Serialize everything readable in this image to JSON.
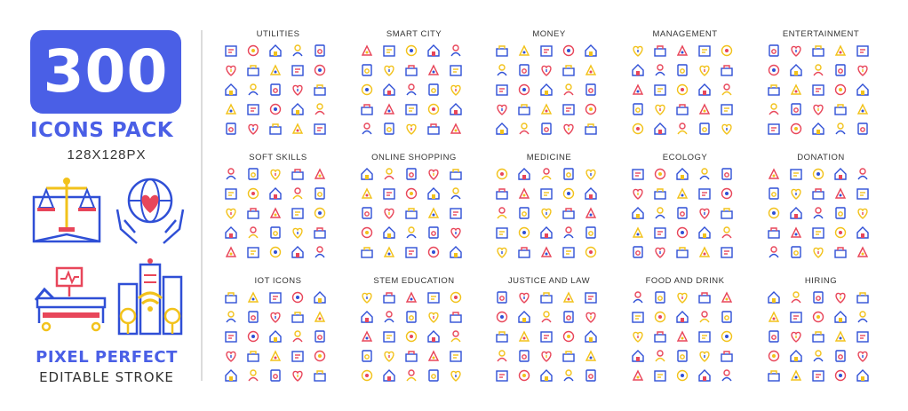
{
  "header": {
    "count": "300",
    "title": "ICONS PACK",
    "size": "128X128PX"
  },
  "footer": {
    "line1": "PIXEL PERFECT",
    "line2": "EDITABLE STROKE"
  },
  "colors": {
    "brand": "#4a5fe6",
    "icon_blue": "#2f4fd6",
    "icon_red": "#e8465a",
    "icon_yellow": "#f2c21b",
    "text": "#333333"
  },
  "categories": [
    {
      "title": "UTILITIES"
    },
    {
      "title": "SMART CITY"
    },
    {
      "title": "MONEY"
    },
    {
      "title": "MANAGEMENT"
    },
    {
      "title": "ENTERTAINMENT"
    },
    {
      "title": "SOFT SKILLS"
    },
    {
      "title": "ONLINE SHOPPING"
    },
    {
      "title": "MEDICINE"
    },
    {
      "title": "ECOLOGY"
    },
    {
      "title": "DONATION"
    },
    {
      "title": "IOT ICONS"
    },
    {
      "title": "STEM EDUCATION"
    },
    {
      "title": "JUSTICE AND LAW"
    },
    {
      "title": "FOOD AND DRINK"
    },
    {
      "title": "HIRING"
    }
  ]
}
